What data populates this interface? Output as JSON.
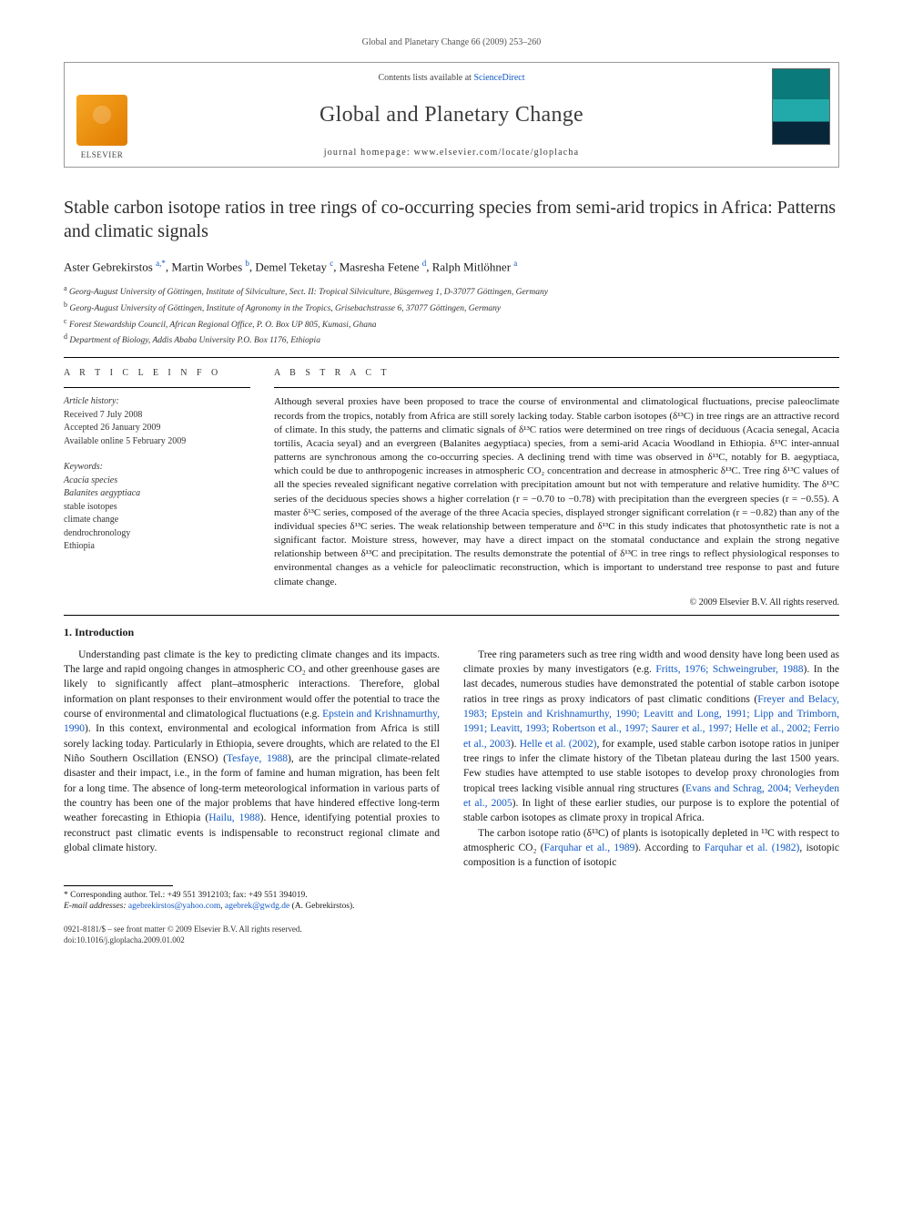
{
  "pageHeader": "Global and Planetary Change 66 (2009) 253–260",
  "banner": {
    "contentsPrefix": "Contents lists available at ",
    "contentsLink": "ScienceDirect",
    "journalName": "Global and Planetary Change",
    "homepagePrefix": "journal homepage: ",
    "homepage": "www.elsevier.com/locate/gloplacha",
    "publisherLabel": "ELSEVIER"
  },
  "title": "Stable carbon isotope ratios in tree rings of co-occurring species from semi-arid tropics in Africa: Patterns and climatic signals",
  "authorsHtml": "Aster Gebrekirstos <span class='sup'>a,*</span>, Martin Worbes <span class='sup'>b</span>, Demel Teketay <span class='sup'>c</span>, Masresha Fetene <span class='sup'>d</span>, Ralph Mitlöhner <span class='sup'>a</span>",
  "affiliations": [
    {
      "sup": "a",
      "text": "Georg-August University of Göttingen, Institute of Silviculture, Sect. II: Tropical Silviculture, Büsgenweg 1, D-37077 Göttingen, Germany"
    },
    {
      "sup": "b",
      "text": "Georg-August University of Göttingen, Institute of Agronomy in the Tropics, Grisebachstrasse 6, 37077 Göttingen, Germany"
    },
    {
      "sup": "c",
      "text": "Forest Stewardship Council, African Regional Office, P. O. Box UP 805, Kumasi, Ghana"
    },
    {
      "sup": "d",
      "text": "Department of Biology, Addis Ababa University P.O. Box 1176, Ethiopia"
    }
  ],
  "articleInfo": {
    "header": "A R T I C L E   I N F O",
    "historyLabel": "Article history:",
    "received": "Received 7 July 2008",
    "accepted": "Accepted 26 January 2009",
    "online": "Available online 5 February 2009",
    "keywordsLabel": "Keywords:",
    "keywords": [
      "Acacia species",
      "Balanites aegyptiaca",
      "stable isotopes",
      "climate change",
      "dendrochronology",
      "Ethiopia"
    ]
  },
  "abstract": {
    "header": "A B S T R A C T",
    "text": "Although several proxies have been proposed to trace the course of environmental and climatological fluctuations, precise paleoclimate records from the tropics, notably from Africa are still sorely lacking today. Stable carbon isotopes (δ¹³C) in tree rings are an attractive record of climate. In this study, the patterns and climatic signals of δ¹³C ratios were determined on tree rings of deciduous (Acacia senegal, Acacia tortilis, Acacia seyal) and an evergreen (Balanites aegyptiaca) species, from a semi-arid Acacia Woodland in Ethiopia. δ¹³C inter-annual patterns are synchronous among the co-occurring species. A declining trend with time was observed in δ¹³C, notably for B. aegyptiaca, which could be due to anthropogenic increases in atmospheric CO₂ concentration and decrease in atmospheric δ¹³C. Tree ring δ¹³C values of all the species revealed significant negative correlation with precipitation amount but not with temperature and relative humidity. The δ¹³C series of the deciduous species shows a higher correlation (r = −0.70 to −0.78) with precipitation than the evergreen species (r = −0.55). A master δ¹³C series, composed of the average of the three Acacia species, displayed stronger significant correlation (r = −0.82) than any of the individual species δ¹³C series. The weak relationship between temperature and δ¹³C in this study indicates that photosynthetic rate is not a significant factor. Moisture stress, however, may have a direct impact on the stomatal conductance and explain the strong negative relationship between δ¹³C and precipitation. The results demonstrate the potential of δ¹³C in tree rings to reflect physiological responses to environmental changes as a vehicle for paleoclimatic reconstruction, which is important to understand tree response to past and future climate change.",
    "copyright": "© 2009 Elsevier B.V. All rights reserved."
  },
  "section1": {
    "heading": "1. Introduction",
    "p1a": "Understanding past climate is the key to predicting climate changes and its impacts. The large and rapid ongoing changes in atmospheric CO₂ and other greenhouse gases are likely to significantly affect plant–atmospheric interactions. Therefore, global information on plant responses to their environment would offer the potential to trace the course of environmental and climatological fluctuations (e.g. ",
    "p1link1": "Epstein and Krishnamurthy, 1990",
    "p1b": "). In this context, environmental and ecological information from Africa is still sorely lacking today. Particularly in Ethiopia, severe droughts, which are related to the El Niño Southern Oscillation (ENSO) (",
    "p1link2": "Tesfaye, 1988",
    "p1c": "), are the principal climate-related disaster and their impact, i.e., in the form of famine and human migration, has been felt for a long time. The absence of long-term meteorological information in various parts of the country has been one of the major problems that have hindered effective long-term weather forecasting in Ethiopia (",
    "p1link3": "Hailu, 1988",
    "p1d": "). Hence, identifying potential proxies to reconstruct past climatic events is indispensable to reconstruct regional climate and global climate history.",
    "p2a": "Tree ring parameters such as tree ring width and wood density have long been used as climate proxies by many investigators (e.g. ",
    "p2link1": "Fritts, 1976; Schweingruber, 1988",
    "p2b": "). In the last decades, numerous studies have demonstrated the potential of stable carbon isotope ratios in tree rings as proxy indicators of past climatic conditions (",
    "p2link2": "Freyer and Belacy, 1983; Epstein and Krishnamurthy, 1990; Leavitt and Long, 1991; Lipp and Trimborn, 1991; Leavitt, 1993; Robertson et al., 1997; Saurer et al., 1997; Helle et al., 2002; Ferrio et al., 2003",
    "p2c": "). ",
    "p2link3": "Helle et al. (2002)",
    "p2d": ", for example, used stable carbon isotope ratios in juniper tree rings to infer the climate history of the Tibetan plateau during the last 1500 years. Few studies have attempted to use stable isotopes to develop proxy chronologies from tropical trees lacking visible annual ring structures (",
    "p2link4": "Evans and Schrag, 2004; Verheyden et al., 2005",
    "p2e": "). In light of these earlier studies, our purpose is to explore the potential of stable carbon isotopes as climate proxy in tropical Africa.",
    "p3a": "The carbon isotope ratio (δ¹³C) of plants is isotopically depleted in ¹³C with respect to atmospheric CO₂ (",
    "p3link1": "Farquhar et al., 1989",
    "p3b": "). According to ",
    "p3link2": "Farquhar et al. (1982)",
    "p3c": ", isotopic composition is a function of isotopic"
  },
  "footnotes": {
    "corrLabel": "* Corresponding author. Tel.: +49 551 3912103; fax: +49 551 394019.",
    "emailsLabel": "E-mail addresses: ",
    "email1": "agebrekirstos@yahoo.com",
    "emailSep": ", ",
    "email2": "agebrek@gwdg.de",
    "emailTail": " (A. Gebrekirstos)."
  },
  "bottom": {
    "line1": "0921-8181/$ – see front matter © 2009 Elsevier B.V. All rights reserved.",
    "line2": "doi:10.1016/j.gloplacha.2009.01.002"
  },
  "colors": {
    "link": "#1058c4",
    "text": "#1a1a1a",
    "rule": "#000000"
  }
}
